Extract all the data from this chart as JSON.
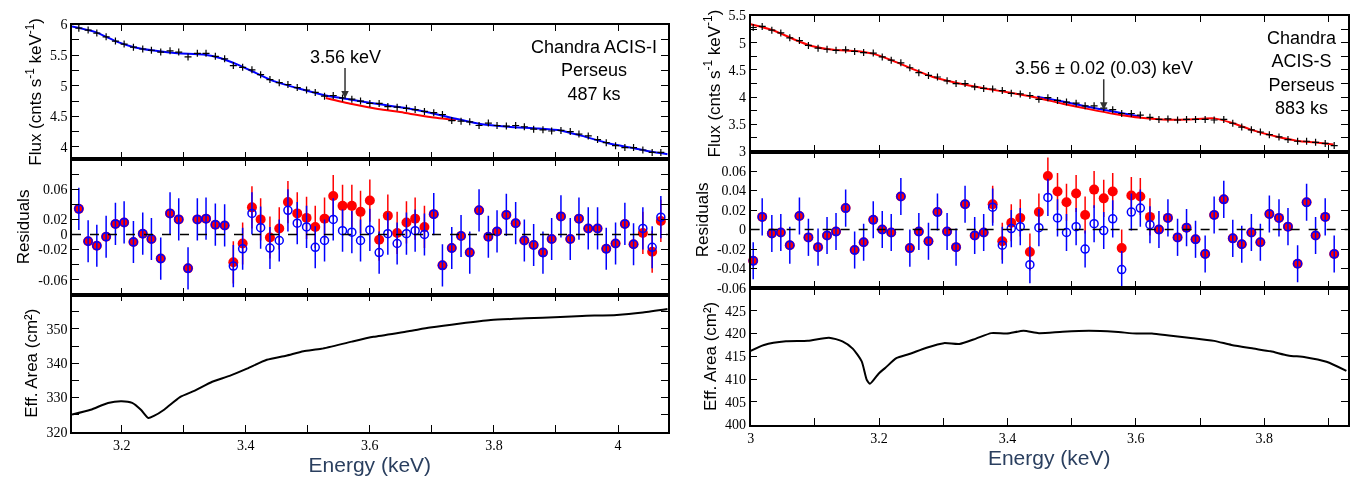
{
  "chart_data": [
    {
      "type": "line",
      "ylabel": "Flux (cnts s$^{-1}$ keV$^{-1}$)",
      "xlim": [
        3.12,
        4.08
      ],
      "xticks": [
        3.2,
        {
          "value": 3.3,
          "label": null
        },
        3.4,
        {
          "value": 3.5,
          "label": null
        },
        3.6,
        {
          "value": 3.7,
          "label": null
        },
        3.8,
        {
          "value": 3.9,
          "label": null
        },
        4
      ],
      "ylim": [
        3.8,
        6.0
      ],
      "yticks": [
        4,
        {
          "value": 4.25,
          "label": null
        },
        4.5,
        {
          "value": 4.75,
          "label": null
        },
        5,
        {
          "value": 5.25,
          "label": null
        },
        5.5,
        {
          "value": 5.75,
          "label": null
        },
        6
      ],
      "tick_labels": "y",
      "annotations": [
        {
          "text": "3.56 keV",
          "x": 3.56,
          "y": 4.79
        },
        "Chandra ACIS-I\nPerseus\n487 ks"
      ],
      "series": [
        {
          "color": "#ff0000",
          "x": [
            3.529,
            3.571,
            3.613,
            3.655,
            3.697,
            3.739
          ],
          "values": [
            4.8,
            4.7,
            4.62,
            4.56,
            4.49,
            4.44
          ]
        },
        {
          "color": "#0000ff",
          "x": [
            3.12,
            3.157,
            3.192,
            3.22,
            3.255,
            3.29,
            3.332,
            3.36,
            3.388,
            3.416,
            3.444,
            3.487,
            3.529,
            3.571,
            3.613,
            3.655,
            3.697,
            3.739,
            3.781,
            3.823,
            3.872,
            3.907,
            3.942,
            3.984,
            4.02,
            4.055,
            4.08
          ],
          "values": [
            5.97,
            5.88,
            5.72,
            5.63,
            5.57,
            5.53,
            5.51,
            5.45,
            5.34,
            5.21,
            5.08,
            4.95,
            4.84,
            4.77,
            4.7,
            4.64,
            4.56,
            4.46,
            4.37,
            4.33,
            4.3,
            4.27,
            4.18,
            4.06,
            3.99,
            3.92,
            3.88
          ]
        },
        {
          "type": "scatter",
          "marker": "cross",
          "color": "#000000",
          "x": [
            3.131,
            3.146,
            3.16,
            3.175,
            3.19,
            3.204,
            3.219,
            3.234,
            3.248,
            3.263,
            3.278,
            3.292,
            3.307,
            3.322,
            3.336,
            3.351,
            3.366,
            3.38,
            3.395,
            3.41,
            3.424,
            3.439,
            3.454,
            3.468,
            3.483,
            3.498,
            3.512,
            3.527,
            3.541,
            3.556,
            3.571,
            3.585,
            3.6,
            3.615,
            3.629,
            3.644,
            3.659,
            3.673,
            3.688,
            3.703,
            3.717,
            3.732,
            3.747,
            3.761,
            3.776,
            3.791,
            3.805,
            3.82,
            3.835,
            3.849,
            3.864,
            3.879,
            3.893,
            3.908,
            3.923,
            3.937,
            3.952,
            3.967,
            3.981,
            3.996,
            4.011,
            4.025,
            4.04,
            4.055,
            4.069
          ],
          "values": [
            5.94,
            5.91,
            5.86,
            5.8,
            5.73,
            5.68,
            5.63,
            5.6,
            5.58,
            5.55,
            5.57,
            5.55,
            5.47,
            5.53,
            5.53,
            5.48,
            5.44,
            5.33,
            5.3,
            5.26,
            5.18,
            5.1,
            5.05,
            5.02,
            4.97,
            4.93,
            4.89,
            4.83,
            4.84,
            4.8,
            4.78,
            4.75,
            4.71,
            4.71,
            4.66,
            4.65,
            4.63,
            4.61,
            4.58,
            4.56,
            4.53,
            4.43,
            4.42,
            4.41,
            4.35,
            4.39,
            4.35,
            4.34,
            4.35,
            4.33,
            4.29,
            4.28,
            4.26,
            4.27,
            4.25,
            4.21,
            4.18,
            4.12,
            4.07,
            4.02,
            3.99,
            3.99,
            3.95,
            3.91,
            3.91
          ]
        }
      ]
    },
    {
      "type": "scatter",
      "ylabel": "Residuals",
      "xlim": [
        3.12,
        4.08
      ],
      "xticks": [
        3.2,
        {
          "value": 3.3,
          "label": null
        },
        3.4,
        {
          "value": 3.5,
          "label": null
        },
        3.6,
        {
          "value": 3.7,
          "label": null
        },
        3.8,
        {
          "value": 3.9,
          "label": null
        },
        4
      ],
      "ylim": [
        -0.08,
        0.1
      ],
      "yticks": [
        {
          "value": -0.08,
          "label": null
        },
        -0.06,
        {
          "value": -0.04,
          "label": null
        },
        -0.02,
        0,
        0.02,
        {
          "value": 0.04,
          "label": null
        },
        0.06,
        {
          "value": 0.08,
          "label": null
        }
      ],
      "tick_labels": "y",
      "marker": "circle",
      "ref_lines": [
        {
          "axis": "y",
          "value": 0,
          "color": "#000000",
          "line_style": "dashed"
        }
      ],
      "x": [
        3.131,
        3.146,
        3.16,
        3.175,
        3.19,
        3.204,
        3.219,
        3.234,
        3.248,
        3.263,
        3.278,
        3.292,
        3.307,
        3.322,
        3.336,
        3.351,
        3.366,
        3.38,
        3.395,
        3.41,
        3.424,
        3.439,
        3.454,
        3.468,
        3.483,
        3.498,
        3.512,
        3.527,
        3.541,
        3.556,
        3.571,
        3.585,
        3.6,
        3.615,
        3.629,
        3.644,
        3.659,
        3.673,
        3.688,
        3.703,
        3.717,
        3.732,
        3.747,
        3.761,
        3.776,
        3.791,
        3.805,
        3.82,
        3.835,
        3.849,
        3.864,
        3.879,
        3.893,
        3.908,
        3.923,
        3.937,
        3.952,
        3.967,
        3.981,
        3.996,
        4.011,
        4.025,
        4.04,
        4.055,
        4.069
      ],
      "series": [
        {
          "color": "#ff0000",
          "values": [
            0.034,
            -0.009,
            -0.015,
            -0.003,
            0.014,
            0.016,
            -0.01,
            0.001,
            -0.006,
            -0.032,
            0.028,
            0.02,
            -0.045,
            0.02,
            0.021,
            0.013,
            0.012,
            -0.037,
            -0.012,
            0.036,
            0.02,
            -0.004,
            0.008,
            0.043,
            0.028,
            0.022,
            0.01,
            0.021,
            0.051,
            0.038,
            0.038,
            0.03,
            0.045,
            -0.007,
            0.025,
            0.002,
            0.016,
            0.021,
            0.01,
            0.027,
            -0.041,
            -0.018,
            -0.002,
            -0.024,
            0.032,
            -0.003,
            0.004,
            0.026,
            0.015,
            -0.008,
            -0.014,
            -0.024,
            -0.006,
            0.024,
            -0.006,
            0.021,
            0.008,
            0.008,
            -0.019,
            -0.012,
            0.014,
            -0.013,
            0.002,
            -0.023,
            0.018
          ],
          "errors": [
            null,
            null,
            null,
            null,
            null,
            null,
            null,
            null,
            null,
            null,
            null,
            null,
            null,
            null,
            null,
            null,
            null,
            0.028,
            0.028,
            0.028,
            0.028,
            0.028,
            0.028,
            0.028,
            0.028,
            0.028,
            0.028,
            0.028,
            0.028,
            0.028,
            0.028,
            0.028,
            0.028,
            0.028,
            0.028,
            0.028,
            0.028,
            0.028,
            0.028,
            null,
            null,
            null,
            null,
            null,
            null,
            null,
            null,
            null,
            null,
            null,
            null,
            null,
            null,
            null,
            null,
            null,
            null,
            null,
            null,
            null,
            null,
            null,
            0.028,
            0.028,
            0.028
          ]
        },
        {
          "color": "#0000ff",
          "values": [
            0.034,
            -0.009,
            -0.015,
            -0.003,
            0.014,
            0.016,
            -0.01,
            0.001,
            -0.006,
            -0.032,
            0.028,
            0.02,
            -0.045,
            0.02,
            0.021,
            0.013,
            0.012,
            -0.042,
            -0.019,
            0.028,
            0.009,
            -0.018,
            -0.008,
            0.032,
            0.015,
            0.01,
            -0.017,
            -0.008,
            0.02,
            0.005,
            0.003,
            -0.008,
            0.006,
            -0.024,
            0.001,
            -0.012,
            0.001,
            0.005,
            0.0,
            0.027,
            -0.041,
            -0.018,
            -0.002,
            -0.024,
            0.032,
            -0.003,
            0.004,
            0.026,
            0.015,
            -0.008,
            -0.014,
            -0.024,
            -0.006,
            0.024,
            -0.006,
            0.021,
            0.008,
            0.008,
            -0.019,
            -0.012,
            0.014,
            -0.013,
            0.008,
            -0.017,
            0.023
          ],
          "errors": [
            0.028,
            0.028,
            0.028,
            0.028,
            0.028,
            0.028,
            0.028,
            0.028,
            0.028,
            0.028,
            0.028,
            0.028,
            0.028,
            0.028,
            0.028,
            0.028,
            0.028,
            0.028,
            0.028,
            0.028,
            0.028,
            0.028,
            0.028,
            0.028,
            0.028,
            0.028,
            0.028,
            0.028,
            0.028,
            0.028,
            0.028,
            0.028,
            0.028,
            0.028,
            0.028,
            0.028,
            0.028,
            0.028,
            0.028,
            0.028,
            0.028,
            0.028,
            0.028,
            0.028,
            0.028,
            0.028,
            0.028,
            0.028,
            0.028,
            0.028,
            0.028,
            0.028,
            0.028,
            0.028,
            0.028,
            0.028,
            0.028,
            0.028,
            0.028,
            0.028,
            0.028,
            0.028,
            0.028,
            0.028,
            0.028
          ]
        }
      ]
    },
    {
      "type": "line",
      "ylabel": "Eff. Area (cm²)",
      "xlabel": "Energy (keV)",
      "xlim": [
        3.12,
        4.08
      ],
      "xticks": [
        3.2,
        {
          "value": 3.3,
          "label": null
        },
        3.4,
        {
          "value": 3.5,
          "label": null
        },
        3.6,
        {
          "value": 3.7,
          "label": null
        },
        3.8,
        {
          "value": 3.9,
          "label": null
        },
        4
      ],
      "ylim": [
        320,
        360
      ],
      "yticks": [
        320,
        {
          "value": 325,
          "label": null
        },
        330,
        {
          "value": 335,
          "label": null
        },
        340,
        {
          "value": 345,
          "label": null
        },
        350,
        {
          "value": 355,
          "label": null
        }
      ],
      "x": [
        3.12,
        3.15,
        3.178,
        3.2,
        3.217,
        3.231,
        3.243,
        3.252,
        3.269,
        3.294,
        3.318,
        3.346,
        3.374,
        3.402,
        3.434,
        3.465,
        3.493,
        3.522,
        3.571,
        3.606,
        3.662,
        3.697,
        3.746,
        3.795,
        3.851,
        3.907,
        3.942,
        3.998,
        4.04,
        4.08
      ],
      "series": [
        {
          "color": "#000000",
          "values": [
            325,
            326.4,
            328.4,
            328.9,
            328.4,
            326.4,
            324,
            324.6,
            326.5,
            330.1,
            332,
            334.6,
            336.3,
            338.4,
            341,
            342.2,
            343.5,
            344.2,
            346.3,
            347.7,
            349.3,
            350.4,
            351.6,
            352.6,
            353.1,
            353.5,
            353.8,
            354.1,
            354.8,
            355.8
          ]
        }
      ]
    },
    {
      "type": "line",
      "ylabel": "Flux (cnts s$^{-1}$ keV$^{-1}$)",
      "xlim": [
        3.0,
        3.93
      ],
      "xticks": [
        3,
        {
          "value": 3.1,
          "label": null
        },
        3.2,
        {
          "value": 3.3,
          "label": null
        },
        3.4,
        {
          "value": 3.5,
          "label": null
        },
        3.6,
        {
          "value": 3.7,
          "label": null
        },
        3.8,
        {
          "value": 3.9,
          "label": null
        }
      ],
      "ylim": [
        3.0,
        5.5
      ],
      "yticks": [
        3,
        {
          "value": 3.25,
          "label": null
        },
        3.5,
        {
          "value": 3.75,
          "label": null
        },
        4,
        {
          "value": 4.25,
          "label": null
        },
        4.5,
        {
          "value": 4.75,
          "label": null
        },
        5,
        {
          "value": 5.25,
          "label": null
        },
        5.5
      ],
      "tick_labels": "y",
      "annotations": [
        {
          "text": "3.56 ± 0.02 (0.03) keV",
          "x": 3.55,
          "y": 3.77
        },
        "Chandra\nACIS-S\nPerseus\n883 ks"
      ],
      "series": [
        {
          "color": "#0000ff",
          "x": [
            3.446,
            3.486,
            3.527,
            3.567,
            3.608
          ],
          "values": [
            4.01,
            3.92,
            3.82,
            3.73,
            3.64
          ]
        },
        {
          "color": "#ff0000",
          "x": [
            3.0,
            3.035,
            3.068,
            3.095,
            3.129,
            3.163,
            3.19,
            3.217,
            3.25,
            3.284,
            3.325,
            3.365,
            3.405,
            3.446,
            3.486,
            3.527,
            3.567,
            3.608,
            3.641,
            3.682,
            3.722,
            3.749,
            3.783,
            3.817,
            3.85,
            3.884,
            3.908
          ],
          "values": [
            5.34,
            5.23,
            5.06,
            4.94,
            4.87,
            4.85,
            4.8,
            4.69,
            4.53,
            4.37,
            4.25,
            4.16,
            4.08,
            3.99,
            3.88,
            3.78,
            3.69,
            3.62,
            3.59,
            3.59,
            3.61,
            3.53,
            3.39,
            3.28,
            3.2,
            3.16,
            3.13
          ]
        },
        {
          "type": "scatter",
          "marker": "cross",
          "color": "#000000",
          "x": [
            3.004,
            3.018,
            3.033,
            3.047,
            3.061,
            3.076,
            3.09,
            3.105,
            3.119,
            3.133,
            3.148,
            3.162,
            3.176,
            3.191,
            3.205,
            3.219,
            3.234,
            3.248,
            3.262,
            3.277,
            3.291,
            3.306,
            3.32,
            3.334,
            3.349,
            3.363,
            3.377,
            3.392,
            3.406,
            3.42,
            3.435,
            3.449,
            3.463,
            3.478,
            3.492,
            3.507,
            3.521,
            3.535,
            3.55,
            3.564,
            3.578,
            3.593,
            3.607,
            3.622,
            3.636,
            3.65,
            3.665,
            3.679,
            3.693,
            3.708,
            3.722,
            3.737,
            3.751,
            3.765,
            3.78,
            3.794,
            3.808,
            3.823,
            3.837,
            3.852,
            3.866,
            3.88,
            3.895,
            3.909
          ],
          "values": [
            5.28,
            5.3,
            5.23,
            5.18,
            5.09,
            5.04,
            4.95,
            4.9,
            4.88,
            4.86,
            4.87,
            4.84,
            4.82,
            4.81,
            4.74,
            4.68,
            4.63,
            4.54,
            4.45,
            4.4,
            4.37,
            4.3,
            4.25,
            4.25,
            4.19,
            4.16,
            4.15,
            4.12,
            4.07,
            4.06,
            4.03,
            3.96,
            3.99,
            3.94,
            3.91,
            3.89,
            3.84,
            3.84,
            3.8,
            3.77,
            3.7,
            3.7,
            3.67,
            3.63,
            3.59,
            3.6,
            3.58,
            3.59,
            3.59,
            3.59,
            3.58,
            3.59,
            3.52,
            3.45,
            3.4,
            3.36,
            3.31,
            3.27,
            3.22,
            3.19,
            3.19,
            3.17,
            3.15,
            3.11
          ]
        }
      ]
    },
    {
      "type": "scatter",
      "ylabel": "Residuals",
      "xlim": [
        3.0,
        3.93
      ],
      "xticks": [
        3,
        {
          "value": 3.1,
          "label": null
        },
        3.2,
        {
          "value": 3.3,
          "label": null
        },
        3.4,
        {
          "value": 3.5,
          "label": null
        },
        3.6,
        {
          "value": 3.7,
          "label": null
        },
        3.8,
        {
          "value": 3.9,
          "label": null
        }
      ],
      "ylim": [
        -0.06,
        0.08
      ],
      "yticks": [
        -0.06,
        -0.04,
        -0.02,
        0,
        0.02,
        0.04,
        0.06
      ],
      "tick_labels": "y",
      "marker": "circle",
      "ref_lines": [
        {
          "axis": "y",
          "value": 0,
          "color": "#000000",
          "line_style": "dashed"
        }
      ],
      "x": [
        3.004,
        3.018,
        3.033,
        3.047,
        3.061,
        3.076,
        3.09,
        3.105,
        3.119,
        3.133,
        3.148,
        3.162,
        3.176,
        3.191,
        3.205,
        3.219,
        3.234,
        3.248,
        3.262,
        3.277,
        3.291,
        3.306,
        3.32,
        3.334,
        3.349,
        3.363,
        3.377,
        3.392,
        3.406,
        3.42,
        3.435,
        3.449,
        3.463,
        3.478,
        3.492,
        3.507,
        3.521,
        3.535,
        3.55,
        3.564,
        3.578,
        3.593,
        3.607,
        3.622,
        3.636,
        3.65,
        3.665,
        3.679,
        3.693,
        3.708,
        3.722,
        3.737,
        3.751,
        3.765,
        3.78,
        3.794,
        3.808,
        3.823,
        3.837,
        3.852,
        3.866,
        3.88,
        3.895,
        3.909
      ],
      "series": [
        {
          "color": "#ff0000",
          "values": [
            -0.032,
            0.013,
            -0.004,
            -0.003,
            -0.016,
            0.014,
            -0.008,
            -0.018,
            -0.006,
            -0.002,
            0.022,
            -0.021,
            -0.013,
            0.01,
            0.0,
            -0.003,
            0.034,
            -0.019,
            -0.002,
            -0.012,
            0.018,
            -0.002,
            -0.018,
            0.026,
            -0.006,
            -0.003,
            0.026,
            -0.012,
            0.007,
            0.012,
            -0.023,
            0.018,
            0.055,
            0.039,
            0.028,
            0.037,
            0.015,
            0.041,
            0.032,
            0.039,
            -0.019,
            0.035,
            0.034,
            0.013,
            0.0,
            0.012,
            -0.008,
            0.002,
            -0.01,
            -0.025,
            0.015,
            0.031,
            -0.009,
            -0.015,
            -0.003,
            -0.013,
            0.016,
            0.012,
            0.003,
            -0.035,
            0.028,
            -0.006,
            0.013,
            -0.025
          ],
          "errors": [
            null,
            null,
            null,
            null,
            null,
            null,
            null,
            null,
            null,
            null,
            null,
            null,
            null,
            null,
            null,
            null,
            null,
            null,
            null,
            null,
            null,
            null,
            null,
            null,
            null,
            null,
            0.019,
            0.019,
            0.019,
            0.019,
            0.019,
            0.019,
            0.019,
            0.019,
            0.019,
            0.019,
            0.019,
            0.019,
            0.019,
            0.019,
            0.019,
            0.019,
            0.019,
            0.019,
            null,
            null,
            null,
            null,
            null,
            null,
            null,
            null,
            null,
            null,
            null,
            null,
            null,
            null,
            null,
            null,
            null,
            null,
            null,
            null
          ]
        },
        {
          "color": "#0000ff",
          "values": [
            -0.032,
            0.013,
            -0.004,
            -0.003,
            -0.016,
            0.014,
            -0.008,
            -0.018,
            -0.006,
            -0.002,
            0.022,
            -0.021,
            -0.013,
            0.01,
            0.0,
            -0.003,
            0.034,
            -0.019,
            -0.002,
            -0.012,
            0.018,
            -0.002,
            -0.018,
            0.026,
            -0.006,
            -0.003,
            0.023,
            -0.016,
            0.001,
            0.003,
            -0.036,
            0.002,
            0.033,
            0.012,
            -0.003,
            0.003,
            -0.02,
            0.006,
            -0.001,
            0.011,
            -0.041,
            0.018,
            0.022,
            0.005,
            0.0,
            0.012,
            -0.008,
            0.002,
            -0.01,
            -0.025,
            0.015,
            0.031,
            -0.009,
            -0.015,
            -0.003,
            -0.013,
            0.016,
            0.012,
            0.003,
            -0.035,
            0.028,
            -0.006,
            0.013,
            -0.025
          ],
          "errors": [
            0.019,
            0.019,
            0.019,
            0.019,
            0.019,
            0.019,
            0.019,
            0.019,
            0.019,
            0.019,
            0.019,
            0.019,
            0.019,
            0.019,
            0.019,
            0.019,
            0.019,
            0.019,
            0.019,
            0.019,
            0.019,
            0.019,
            0.019,
            0.019,
            0.019,
            0.019,
            0.019,
            0.019,
            0.019,
            0.019,
            0.019,
            0.019,
            0.019,
            0.019,
            0.019,
            0.019,
            0.019,
            0.019,
            0.019,
            0.019,
            0.019,
            0.019,
            0.019,
            0.019,
            0.019,
            0.019,
            0.019,
            0.019,
            0.019,
            0.019,
            0.019,
            0.019,
            0.019,
            0.019,
            0.019,
            0.019,
            0.019,
            0.019,
            0.019,
            0.019,
            0.019,
            0.019,
            0.019,
            0.019
          ]
        }
      ]
    },
    {
      "type": "line",
      "ylabel": "Eff. Area (cm²)",
      "xlabel": "Energy (keV)",
      "xlim": [
        3.0,
        3.93
      ],
      "xticks": [
        3,
        {
          "value": 3.1,
          "label": null
        },
        3.2,
        {
          "value": 3.3,
          "label": null
        },
        3.4,
        {
          "value": 3.5,
          "label": null
        },
        3.6,
        {
          "value": 3.7,
          "label": null
        },
        3.8,
        {
          "value": 3.9,
          "label": null
        }
      ],
      "ylim": [
        400,
        430
      ],
      "yticks": [
        400,
        405,
        410,
        415,
        420,
        425
      ],
      "x": [
        3.0,
        3.021,
        3.055,
        3.089,
        3.122,
        3.143,
        3.159,
        3.173,
        3.181,
        3.186,
        3.2,
        3.21,
        3.227,
        3.247,
        3.274,
        3.301,
        3.325,
        3.351,
        3.375,
        3.399,
        3.425,
        3.449,
        3.486,
        3.527,
        3.567,
        3.601,
        3.625,
        3.655,
        3.689,
        3.722,
        3.749,
        3.783,
        3.81,
        3.837,
        3.864,
        3.897,
        3.928
      ],
      "series": [
        {
          "color": "#000000",
          "values": [
            416.2,
            417.5,
            418.3,
            418.4,
            419.1,
            418.3,
            416.7,
            413.9,
            409.8,
            409,
            411.3,
            412.5,
            414.6,
            415.5,
            416.9,
            417.9,
            417.7,
            418.9,
            420.1,
            420,
            420.6,
            420.1,
            420.4,
            420.6,
            420.4,
            420,
            420,
            419.5,
            419,
            418.4,
            417.5,
            416.7,
            416.1,
            415.2,
            414.8,
            413.8,
            411.8
          ]
        }
      ]
    }
  ]
}
